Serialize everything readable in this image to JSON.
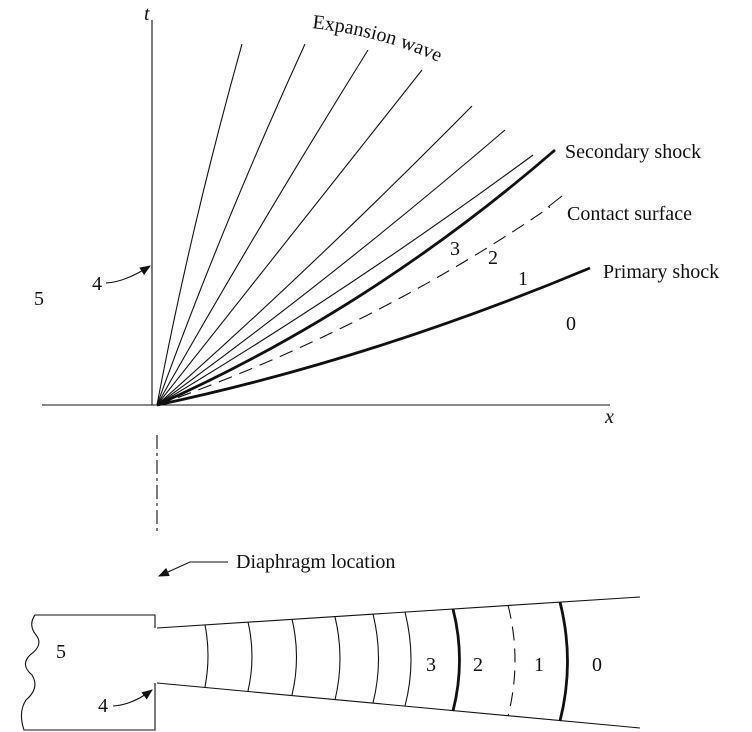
{
  "xt_diagram": {
    "axis_labels": {
      "t": "t",
      "x": "x"
    },
    "expansion_label": "Expansion wave",
    "wave_labels": {
      "secondary": "Secondary shock",
      "contact": "Contact surface",
      "primary": "Primary shock"
    },
    "regions": [
      "5",
      "4",
      "3",
      "2",
      "1",
      "0"
    ]
  },
  "nozzle": {
    "diaphragm_label": "Diaphragm location",
    "regions": [
      "5",
      "4",
      "3",
      "2",
      "1",
      "0"
    ]
  }
}
